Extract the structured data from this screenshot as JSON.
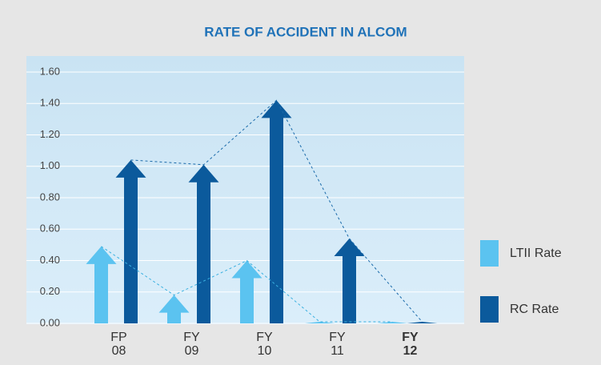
{
  "chart_data": {
    "type": "arrow-bar",
    "title": "RATE OF ACCIDENT IN ALCOM",
    "categories": [
      [
        "FP",
        "08"
      ],
      [
        "FY",
        "09"
      ],
      [
        "FY",
        "10"
      ],
      [
        "FY",
        "11"
      ],
      [
        "FY",
        "12"
      ]
    ],
    "highlight_category": 4,
    "series": [
      {
        "name": "LTII Rate",
        "color": "#5bc3f0",
        "values": [
          0.49,
          0.18,
          0.4,
          0.01,
          0.01
        ]
      },
      {
        "name": "RC Rate",
        "color": "#0b5a9c",
        "values": [
          1.04,
          1.01,
          1.42,
          0.54,
          0.01
        ]
      }
    ],
    "ylim": [
      0,
      1.6
    ],
    "yticks": [
      {
        "value": 0,
        "label": "0.00"
      },
      {
        "value": 0.2,
        "label": "0.20"
      },
      {
        "value": 0.4,
        "label": "0.40"
      },
      {
        "value": 0.6,
        "label": "0.60"
      },
      {
        "value": 0.8,
        "label": "0.80"
      },
      {
        "value": 1.0,
        "label": "1.00"
      },
      {
        "value": 1.2,
        "label": "1.20"
      },
      {
        "value": 1.4,
        "label": "1.40"
      },
      {
        "value": 1.6,
        "label": "1.60"
      }
    ],
    "grid": true,
    "legend": "right"
  }
}
